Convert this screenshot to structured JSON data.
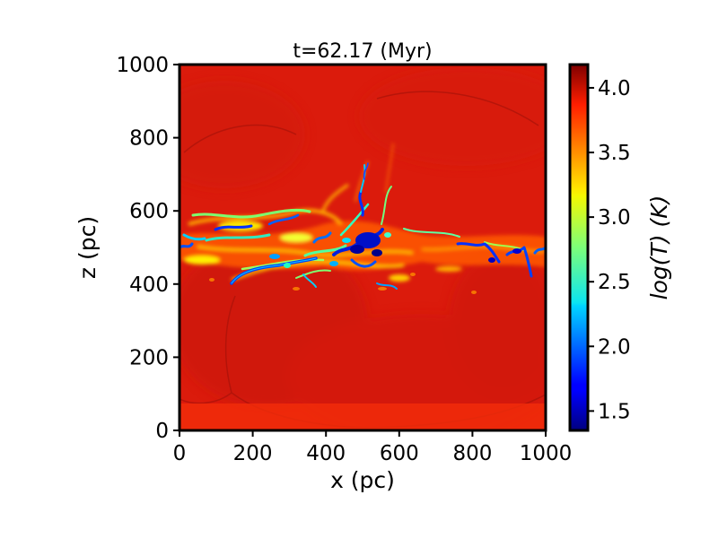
{
  "chart_data": {
    "type": "heatmap",
    "title": "t=62.17 (Myr)",
    "xlabel": "x (pc)",
    "ylabel": "z (pc)",
    "xlim": [
      0,
      1000
    ],
    "ylim": [
      0,
      1000
    ],
    "xticks": [
      "0",
      "200",
      "400",
      "600",
      "800",
      "1000"
    ],
    "yticks": [
      "0",
      "200",
      "400",
      "600",
      "800",
      "1000"
    ],
    "grid": false,
    "colorbar": {
      "label": "log(T) (K)",
      "range": [
        1.35,
        4.18
      ],
      "ticks": [
        "1.5",
        "2.0",
        "2.5",
        "3.0",
        "3.5",
        "4.0"
      ],
      "colormap": "jet"
    },
    "features": {
      "background_logT": 4.1,
      "cold_layer_z_range_pc": [
        400,
        620
      ],
      "coldest_logT": 1.4,
      "cold_plume_top_z_pc": 740
    }
  },
  "colors": {
    "hot": "#d91a0e",
    "frame": "#000000"
  }
}
